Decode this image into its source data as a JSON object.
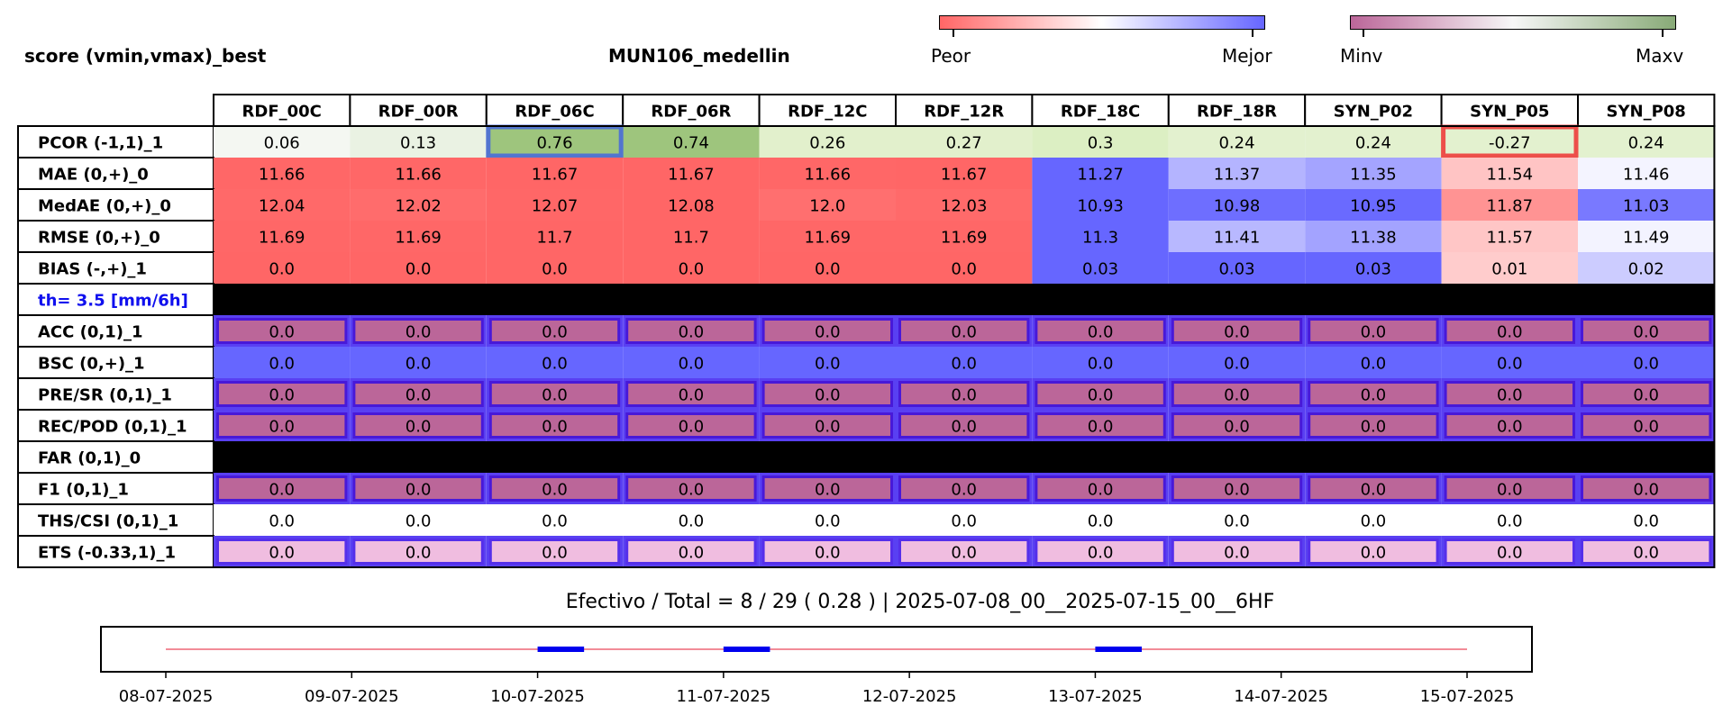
{
  "header": {
    "title_left": "score (vmin,vmax)_best",
    "title_mid": "MUN106_medellin"
  },
  "colorbars": {
    "score": {
      "left_label": "Peor",
      "right_label": "Mejor",
      "colors": [
        "#ff6666",
        "#ffffff",
        "#6666ff"
      ]
    },
    "value": {
      "left_label": "Minv",
      "right_label": "Maxv",
      "colors": [
        "#bb6699",
        "#f7f7f7",
        "#88aa77"
      ]
    }
  },
  "chart_data": {
    "type": "heatmap",
    "columns": [
      "RDF_00C",
      "RDF_00R",
      "RDF_06C",
      "RDF_06R",
      "RDF_12C",
      "RDF_12R",
      "RDF_18C",
      "RDF_18R",
      "SYN_P02",
      "SYN_P05",
      "SYN_P08"
    ],
    "rows": [
      {
        "label": "PCOR (-1,1)_1",
        "kind": "pcor",
        "values": [
          "0.06",
          "0.13",
          "0.76",
          "0.74",
          "0.26",
          "0.27",
          "0.3",
          "0.24",
          "0.24",
          "-0.27",
          "0.24"
        ],
        "colors": [
          "#f4f7f2",
          "#eaf2e3",
          "#9ec57d",
          "#9ec57d",
          "#e2f0cc",
          "#e2f0cc",
          "#dcefc3",
          "#e3f1cf",
          "#e3f1cf",
          "#e3f1cf",
          "#e3f1cf"
        ],
        "best_index": 2,
        "worst_index": 9
      },
      {
        "label": "MAE (0,+)_0",
        "kind": "score",
        "values": [
          "11.66",
          "11.66",
          "11.67",
          "11.67",
          "11.66",
          "11.67",
          "11.27",
          "11.37",
          "11.35",
          "11.54",
          "11.46"
        ],
        "colors": [
          "#ff6767",
          "#ff6767",
          "#ff6666",
          "#ff6666",
          "#ff6767",
          "#ff6666",
          "#6666ff",
          "#b4b4ff",
          "#a4a4ff",
          "#ffc4c4",
          "#f4f4ff"
        ]
      },
      {
        "label": "MedAE (0,+)_0",
        "kind": "score",
        "values": [
          "12.04",
          "12.02",
          "12.07",
          "12.08",
          "12.0",
          "12.03",
          "10.93",
          "10.98",
          "10.95",
          "11.87",
          "11.03"
        ],
        "colors": [
          "#ff6969",
          "#ff6c6c",
          "#ff6767",
          "#ff6666",
          "#ff6f6f",
          "#ff6a6a",
          "#6666ff",
          "#6e6eff",
          "#6a6aff",
          "#ff9393",
          "#7979ff"
        ]
      },
      {
        "label": "RMSE (0,+)_0",
        "kind": "score",
        "values": [
          "11.69",
          "11.69",
          "11.7",
          "11.7",
          "11.69",
          "11.69",
          "11.3",
          "11.41",
          "11.38",
          "11.57",
          "11.49"
        ],
        "colors": [
          "#ff6767",
          "#ff6767",
          "#ff6666",
          "#ff6666",
          "#ff6767",
          "#ff6767",
          "#6666ff",
          "#b8b8ff",
          "#a3a3ff",
          "#ffc6c6",
          "#f3f3ff"
        ]
      },
      {
        "label": "BIAS (-,+)_1",
        "kind": "score",
        "values": [
          "0.0",
          "0.0",
          "0.0",
          "0.0",
          "0.0",
          "0.0",
          "0.03",
          "0.03",
          "0.03",
          "0.01",
          "0.02"
        ],
        "colors": [
          "#ff6666",
          "#ff6666",
          "#ff6666",
          "#ff6666",
          "#ff6666",
          "#ff6666",
          "#6666ff",
          "#6666ff",
          "#6666ff",
          "#ffcccc",
          "#ccccff"
        ]
      },
      {
        "label": "th= 3.5 [mm/6h]",
        "kind": "separator",
        "label_color": "#1010ee"
      },
      {
        "label": "ACC (0,1)_1",
        "kind": "boxed",
        "values": [
          "0.0",
          "0.0",
          "0.0",
          "0.0",
          "0.0",
          "0.0",
          "0.0",
          "0.0",
          "0.0",
          "0.0",
          "0.0"
        ],
        "fill": "#bb6699"
      },
      {
        "label": "BSC (0,+)_1",
        "kind": "flat",
        "values": [
          "0.0",
          "0.0",
          "0.0",
          "0.0",
          "0.0",
          "0.0",
          "0.0",
          "0.0",
          "0.0",
          "0.0",
          "0.0"
        ],
        "fill": "#6666ff"
      },
      {
        "label": "PRE/SR (0,1)_1",
        "kind": "boxed",
        "values": [
          "0.0",
          "0.0",
          "0.0",
          "0.0",
          "0.0",
          "0.0",
          "0.0",
          "0.0",
          "0.0",
          "0.0",
          "0.0"
        ],
        "fill": "#bb6699"
      },
      {
        "label": "REC/POD (0,1)_1",
        "kind": "boxed",
        "values": [
          "0.0",
          "0.0",
          "0.0",
          "0.0",
          "0.0",
          "0.0",
          "0.0",
          "0.0",
          "0.0",
          "0.0",
          "0.0"
        ],
        "fill": "#bb6699"
      },
      {
        "label": "FAR (0,1)_0",
        "kind": "black"
      },
      {
        "label": "F1 (0,1)_1",
        "kind": "boxed",
        "values": [
          "0.0",
          "0.0",
          "0.0",
          "0.0",
          "0.0",
          "0.0",
          "0.0",
          "0.0",
          "0.0",
          "0.0",
          "0.0"
        ],
        "fill": "#bb6699"
      },
      {
        "label": "THS/CSI (0,1)_1",
        "kind": "flat",
        "values": [
          "0.0",
          "0.0",
          "0.0",
          "0.0",
          "0.0",
          "0.0",
          "0.0",
          "0.0",
          "0.0",
          "0.0",
          "0.0"
        ],
        "fill": "#ffffff"
      },
      {
        "label": "ETS (-0.33,1)_1",
        "kind": "boxed",
        "values": [
          "0.0",
          "0.0",
          "0.0",
          "0.0",
          "0.0",
          "0.0",
          "0.0",
          "0.0",
          "0.0",
          "0.0",
          "0.0"
        ],
        "fill": "#f0bde0"
      }
    ],
    "box_color": "#2200ee",
    "best_color": "#4466dd",
    "worst_color": "#ee3333",
    "timeline": {
      "type": "line",
      "x_tick_labels": [
        "08-07-2025",
        "09-07-2025",
        "10-07-2025",
        "11-07-2025",
        "12-07-2025",
        "13-07-2025",
        "14-07-2025",
        "15-07-2025"
      ],
      "x_range": [
        "08-07-2025",
        "15-07-2025"
      ],
      "line_color": "#ee6677",
      "active_color": "#0000ee",
      "active_segments": [
        [
          "10-07-2025 00:00",
          "10-07-2025 06:00"
        ],
        [
          "11-07-2025 00:00",
          "11-07-2025 06:00"
        ],
        [
          "13-07-2025 00:00",
          "13-07-2025 06:00"
        ]
      ]
    }
  },
  "footer": {
    "summary": "Efectivo / Total  =  8 / 29 ( 0.28 ) | 2025-07-08_00__2025-07-15_00__6HF"
  }
}
